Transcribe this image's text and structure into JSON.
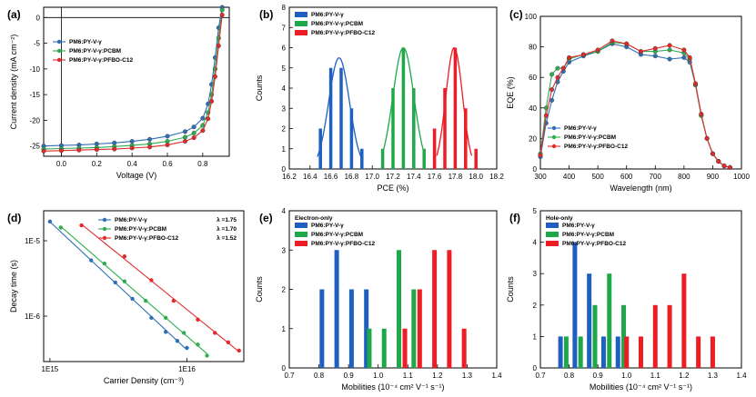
{
  "chart_data": [
    {
      "panel": "(a)",
      "type": "line",
      "xlabel": "Voltage (V)",
      "ylabel": "Current density (mA cm⁻²)",
      "xlim": [
        -0.1,
        0.95
      ],
      "ylim": [
        -27,
        2
      ],
      "xticks": [
        "0.0",
        "0.2",
        "0.4",
        "0.6",
        "0.8"
      ],
      "xtick_values": [
        0.0,
        0.2,
        0.4,
        0.6,
        0.8
      ],
      "yticks": [
        "0",
        "-5",
        "-10",
        "-15",
        "-20",
        "-25"
      ],
      "ytick_values": [
        0,
        -5,
        -10,
        -15,
        -20,
        -25
      ],
      "legend_position": "top-left",
      "series": [
        {
          "name": "PM6:PY-V-γ",
          "color": "#2f6fb5",
          "marker": "circle",
          "x": [
            -0.1,
            0.0,
            0.1,
            0.2,
            0.3,
            0.4,
            0.5,
            0.6,
            0.7,
            0.75,
            0.8,
            0.83,
            0.85,
            0.87,
            0.89,
            0.91
          ],
          "y": [
            -25.0,
            -24.9,
            -24.8,
            -24.6,
            -24.4,
            -24.1,
            -23.7,
            -23.1,
            -22.2,
            -21.3,
            -19.6,
            -16.8,
            -13.0,
            -7.8,
            -2.0,
            2.0
          ]
        },
        {
          "name": "PM6:PY-V-γ:PCBM",
          "color": "#2eae50",
          "marker": "circle",
          "x": [
            -0.1,
            0.0,
            0.1,
            0.2,
            0.3,
            0.4,
            0.5,
            0.6,
            0.7,
            0.75,
            0.8,
            0.83,
            0.85,
            0.87,
            0.89,
            0.91
          ],
          "y": [
            -25.6,
            -25.5,
            -25.4,
            -25.3,
            -25.1,
            -24.9,
            -24.6,
            -24.1,
            -23.3,
            -22.5,
            -21.0,
            -18.5,
            -15.0,
            -10.0,
            -4.0,
            1.5
          ]
        },
        {
          "name": "PM6:PY-V-γ:PFBO-C12",
          "color": "#e32a2a",
          "marker": "circle",
          "x": [
            -0.1,
            0.0,
            0.1,
            0.2,
            0.3,
            0.4,
            0.5,
            0.6,
            0.7,
            0.75,
            0.8,
            0.83,
            0.85,
            0.87,
            0.89,
            0.91
          ],
          "y": [
            -26.0,
            -25.9,
            -25.8,
            -25.7,
            -25.6,
            -25.4,
            -25.2,
            -24.8,
            -24.1,
            -23.4,
            -22.0,
            -19.7,
            -16.3,
            -11.5,
            -5.5,
            0.5
          ]
        }
      ]
    },
    {
      "panel": "(b)",
      "type": "bar",
      "xlabel": "PCE (%)",
      "ylabel": "Counts",
      "xlim": [
        16.2,
        18.2
      ],
      "ylim": [
        0,
        8
      ],
      "xticks": [
        "16.2",
        "16.4",
        "16.6",
        "16.8",
        "17.0",
        "17.2",
        "17.4",
        "17.6",
        "17.8",
        "18.0",
        "18.2"
      ],
      "xtick_values": [
        16.2,
        16.4,
        16.6,
        16.8,
        17.0,
        17.2,
        17.4,
        17.6,
        17.8,
        18.0,
        18.2
      ],
      "yticks": [
        "0",
        "1",
        "2",
        "3",
        "4",
        "5",
        "6",
        "7",
        "8"
      ],
      "ytick_values": [
        0,
        1,
        2,
        3,
        4,
        5,
        6,
        7,
        8
      ],
      "legend_position": "top-left",
      "series": [
        {
          "name": "PM6:PY-V-γ",
          "color": "#1f5fbf",
          "x": [
            16.5,
            16.6,
            16.7,
            16.8,
            16.9
          ],
          "values": [
            2,
            5,
            5,
            3,
            1
          ],
          "fit": {
            "mean": 16.68,
            "sd": 0.1,
            "peak": 5.5
          }
        },
        {
          "name": "PM6:PY-V-γ:PCBM",
          "color": "#1fa84a",
          "x": [
            17.1,
            17.2,
            17.3,
            17.4,
            17.5
          ],
          "values": [
            1,
            4,
            6,
            4,
            1
          ],
          "fit": {
            "mean": 17.3,
            "sd": 0.1,
            "peak": 6.0
          }
        },
        {
          "name": "PM6:PY-V-γ:PFBO-C12",
          "color": "#ee1c24",
          "x": [
            17.6,
            17.7,
            17.8,
            17.9,
            18.0
          ],
          "values": [
            2,
            4,
            6,
            3,
            1
          ],
          "fit": {
            "mean": 17.79,
            "sd": 0.08,
            "peak": 6.0
          }
        }
      ]
    },
    {
      "panel": "(c)",
      "type": "line",
      "xlabel": "Wavelength (nm)",
      "ylabel": "EQE (%)",
      "xlim": [
        300,
        1000
      ],
      "ylim": [
        0,
        100
      ],
      "xticks": [
        "300",
        "400",
        "500",
        "600",
        "700",
        "800",
        "900",
        "1000"
      ],
      "xtick_values": [
        300,
        400,
        500,
        600,
        700,
        800,
        900,
        1000
      ],
      "yticks": [
        "0",
        "20",
        "40",
        "60",
        "80",
        "100"
      ],
      "ytick_values": [
        0,
        20,
        40,
        60,
        80,
        100
      ],
      "legend_position": "bottom-left",
      "series": [
        {
          "name": "PM6:PY-V-γ",
          "color": "#2f6fb5",
          "x": [
            300,
            320,
            340,
            360,
            380,
            400,
            450,
            500,
            550,
            600,
            650,
            700,
            750,
            800,
            820,
            840,
            860,
            880,
            900,
            920,
            940,
            960
          ],
          "y": [
            8,
            30,
            45,
            57,
            64,
            70,
            74,
            77,
            82,
            80,
            75,
            74,
            72,
            73,
            70,
            55,
            35,
            20,
            10,
            5,
            2,
            1
          ]
        },
        {
          "name": "PM6:PY-V-γ:PCBM",
          "color": "#2eae50",
          "x": [
            300,
            320,
            340,
            360,
            380,
            400,
            450,
            500,
            550,
            600,
            650,
            700,
            750,
            800,
            820,
            840,
            860,
            880,
            900,
            920,
            940,
            960
          ],
          "y": [
            10,
            40,
            62,
            66,
            66,
            72,
            75,
            77,
            83,
            82,
            77,
            77,
            78,
            76,
            72,
            55,
            35,
            20,
            10,
            5,
            2,
            1
          ]
        },
        {
          "name": "PM6:PY-V-γ:PFBO-C12",
          "color": "#e32a2a",
          "x": [
            300,
            320,
            340,
            360,
            380,
            400,
            450,
            500,
            550,
            600,
            650,
            700,
            750,
            800,
            820,
            840,
            860,
            880,
            900,
            920,
            940,
            960
          ],
          "y": [
            9,
            35,
            52,
            60,
            66,
            73,
            75,
            78,
            84,
            82,
            77,
            79,
            81,
            78,
            73,
            56,
            36,
            20,
            10,
            5,
            2,
            1
          ]
        }
      ]
    },
    {
      "panel": "(d)",
      "type": "scatter",
      "xlabel": "Carrier Density (cm⁻³)",
      "ylabel": "Decay time (s)",
      "xscale": "log",
      "yscale": "log",
      "xlim": [
        900000000000000.0,
        2.6e+16
      ],
      "ylim": [
        2.5e-07,
        2.5e-05
      ],
      "xticks": [
        "1E15",
        "1E16"
      ],
      "xtick_values": [
        1000000000000000.0,
        1e+16
      ],
      "yticks": [
        "1E-5",
        "1E-6"
      ],
      "ytick_values": [
        1e-05,
        1e-06
      ],
      "legend_position": "top-right",
      "series": [
        {
          "name": "PM6:PY-V-γ",
          "color": "#2f6fb5",
          "slope_label": "λ =1.75",
          "x": [
            1000000000000000.0,
            2000000000000000.0,
            3000000000000000.0,
            4000000000000000.0,
            5500000000000000.0,
            7000000000000000.0,
            8500000000000000.0,
            1e+16
          ],
          "y": [
            1.8e-05,
            5.5e-06,
            2.8e-06,
            1.7e-06,
            9.5e-07,
            6.2e-07,
            4.7e-07,
            3.8e-07
          ]
        },
        {
          "name": "PM6:PY-V-γ:PCBM",
          "color": "#2eae50",
          "slope_label": "λ =1.70",
          "x": [
            1200000000000000.0,
            2500000000000000.0,
            3500000000000000.0,
            5000000000000000.0,
            7000000000000000.0,
            9500000000000000.0,
            1.2e+16,
            1.4e+16
          ],
          "y": [
            1.5e-05,
            5e-06,
            2.9e-06,
            1.6e-06,
            9.5e-07,
            6e-07,
            4.2e-07,
            3e-07
          ]
        },
        {
          "name": "PM6:PY-V-γ:PFBO-C12",
          "color": "#e32a2a",
          "slope_label": "λ =1.52",
          "x": [
            1700000000000000.0,
            3500000000000000.0,
            5500000000000000.0,
            8000000000000000.0,
            1.2e+16,
            1.6e+16,
            2e+16,
            2.4e+16
          ],
          "y": [
            1.6e-05,
            6.2e-06,
            3e-06,
            1.6e-06,
            9e-07,
            6e-07,
            4.5e-07,
            3.5e-07
          ]
        }
      ]
    },
    {
      "panel": "(e)",
      "type": "bar",
      "annotation": "Electron-only",
      "xlabel": "Mobilities (10⁻⁴ cm² V⁻¹ s⁻¹)",
      "ylabel": "Counts",
      "xlim": [
        0.7,
        1.4
      ],
      "ylim": [
        0,
        4
      ],
      "xticks": [
        "0.7",
        "0.8",
        "0.9",
        "1.0",
        "1.1",
        "1.2",
        "1.3",
        "1.4"
      ],
      "xtick_values": [
        0.7,
        0.8,
        0.9,
        1.0,
        1.1,
        1.2,
        1.3,
        1.4
      ],
      "yticks": [
        "0",
        "1",
        "2",
        "3",
        "4"
      ],
      "ytick_values": [
        0,
        1,
        2,
        3,
        4
      ],
      "legend_position": "top-left",
      "series": [
        {
          "name": "PM6:PY-V-γ",
          "color": "#1f5fbf",
          "x": [
            0.81,
            0.86,
            0.91,
            0.96
          ],
          "values": [
            2,
            3,
            2,
            2
          ]
        },
        {
          "name": "PM6:PY-V-γ:PCBM",
          "color": "#1fa84a",
          "x": [
            0.97,
            1.02,
            1.07,
            1.12
          ],
          "values": [
            1,
            1,
            3,
            2
          ]
        },
        {
          "name": "PM6:PY-V-γ:PFBO-C12",
          "color": "#ee1c24",
          "x": [
            1.09,
            1.14,
            1.19,
            1.24,
            1.29
          ],
          "values": [
            1,
            2,
            3,
            3,
            1
          ]
        }
      ]
    },
    {
      "panel": "(f)",
      "type": "bar",
      "annotation": "Hole-only",
      "xlabel": "Mobilities (10⁻⁴ cm² V⁻¹ s⁻¹)",
      "ylabel": "Counts",
      "xlim": [
        0.7,
        1.4
      ],
      "ylim": [
        0,
        5
      ],
      "xticks": [
        "0.7",
        "0.8",
        "0.9",
        "1.0",
        "1.1",
        "1.2",
        "1.3",
        "1.4"
      ],
      "xtick_values": [
        0.7,
        0.8,
        0.9,
        1.0,
        1.1,
        1.2,
        1.3,
        1.4
      ],
      "yticks": [
        "0",
        "1",
        "2",
        "3",
        "4",
        "5"
      ],
      "ytick_values": [
        0,
        1,
        2,
        3,
        4,
        5
      ],
      "legend_position": "top-left",
      "series": [
        {
          "name": "PM6:PY-V-γ",
          "color": "#1f5fbf",
          "x": [
            0.77,
            0.82,
            0.87,
            0.92,
            0.97
          ],
          "values": [
            1,
            4,
            3,
            1,
            1
          ]
        },
        {
          "name": "PM6:PY-V-γ:PCBM",
          "color": "#1fa84a",
          "x": [
            0.79,
            0.84,
            0.89,
            0.94,
            0.99
          ],
          "values": [
            1,
            1,
            2,
            3,
            2
          ]
        },
        {
          "name": "PM6:PY-V-γ:PFBO-C12",
          "color": "#ee1c24",
          "x": [
            1.0,
            1.05,
            1.1,
            1.15,
            1.2,
            1.25,
            1.3
          ],
          "values": [
            1,
            1,
            2,
            2,
            3,
            1,
            1
          ]
        }
      ]
    }
  ]
}
